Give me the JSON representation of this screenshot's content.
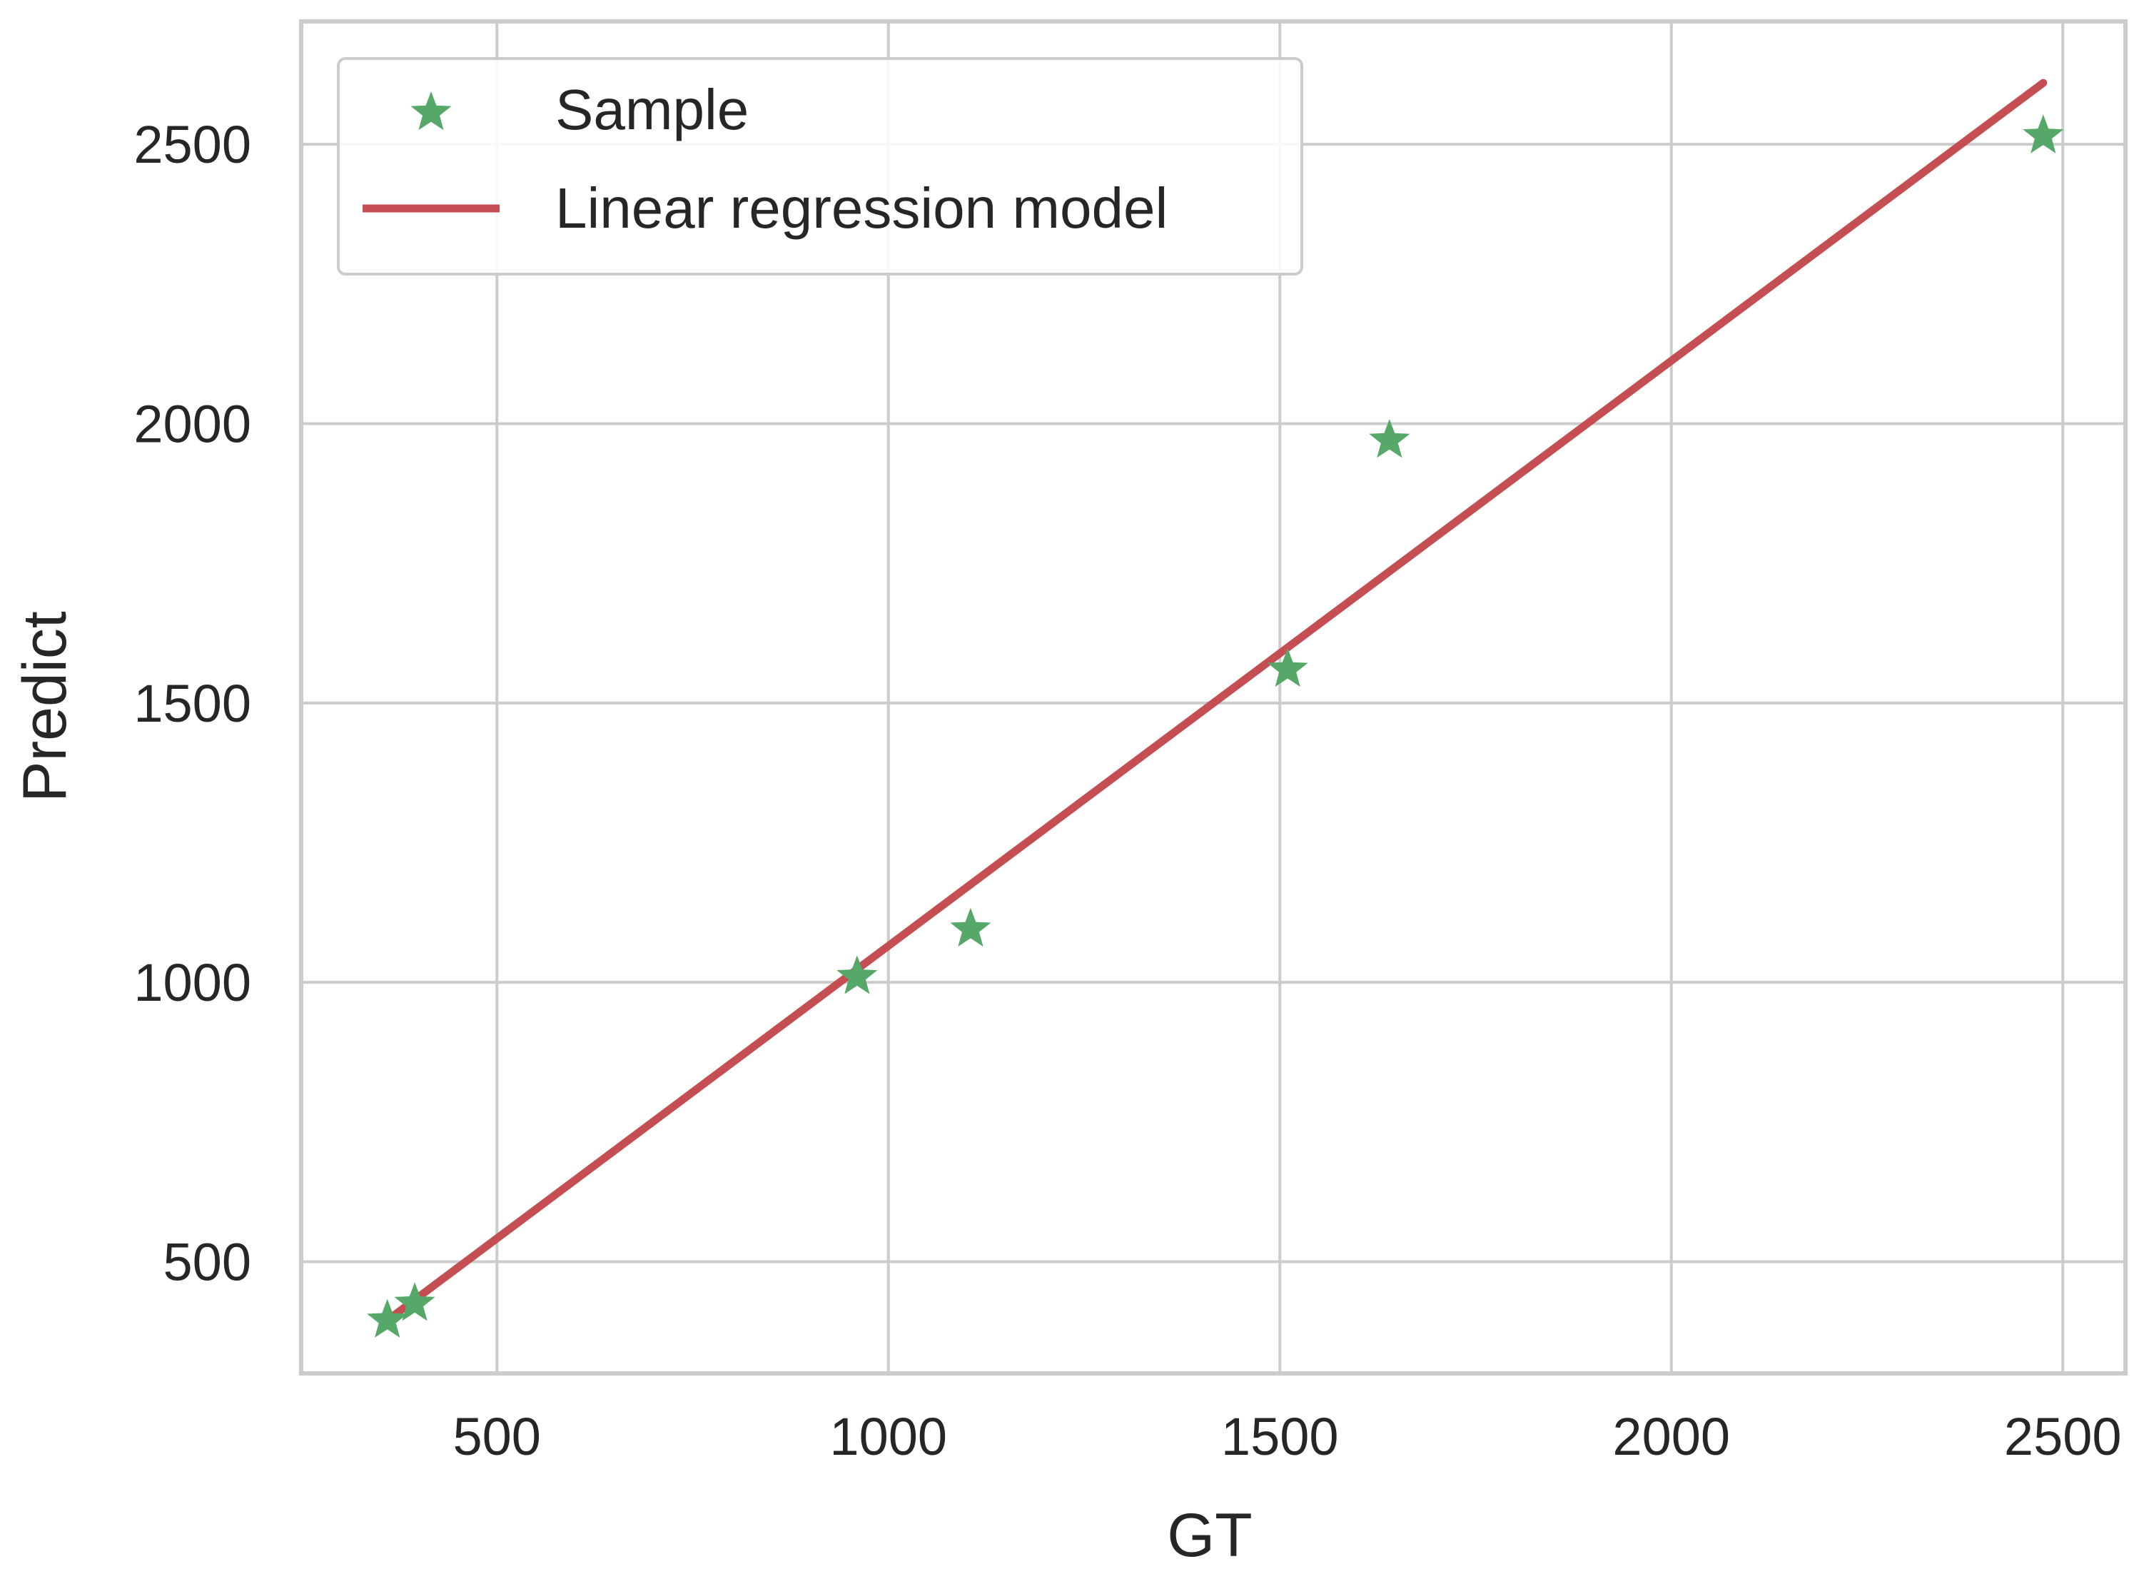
{
  "chart_data": {
    "type": "scatter",
    "title": "",
    "xlabel": "GT",
    "ylabel": "Predict",
    "xlim": [
      250,
      2580
    ],
    "ylim": [
      300,
      2720
    ],
    "xticks": [
      500,
      1000,
      1500,
      2000,
      2500
    ],
    "yticks": [
      500,
      1000,
      1500,
      2000,
      2500
    ],
    "xtick_labels": [
      "500",
      "1000",
      "1500",
      "2000",
      "2500"
    ],
    "ytick_labels": [
      "500",
      "1000",
      "1500",
      "2000",
      "2500"
    ],
    "grid": true,
    "legend_position": "top-left",
    "series": [
      {
        "name": "Sample",
        "kind": "scatter",
        "marker": "star",
        "color": "#55a868",
        "points": [
          {
            "x": 360,
            "y": 395
          },
          {
            "x": 395,
            "y": 425
          },
          {
            "x": 960,
            "y": 1010
          },
          {
            "x": 1105,
            "y": 1095
          },
          {
            "x": 1510,
            "y": 1560
          },
          {
            "x": 1640,
            "y": 1970
          },
          {
            "x": 2475,
            "y": 2515
          }
        ]
      },
      {
        "name": "Linear regression model",
        "kind": "line",
        "color": "#c44e52",
        "points": [
          {
            "x": 360,
            "y": 395
          },
          {
            "x": 2475,
            "y": 2610
          }
        ]
      }
    ],
    "colors": {
      "grid": "#cccccc",
      "frame": "#cccccc",
      "legend_border": "#cccccc",
      "text": "#262626"
    }
  }
}
